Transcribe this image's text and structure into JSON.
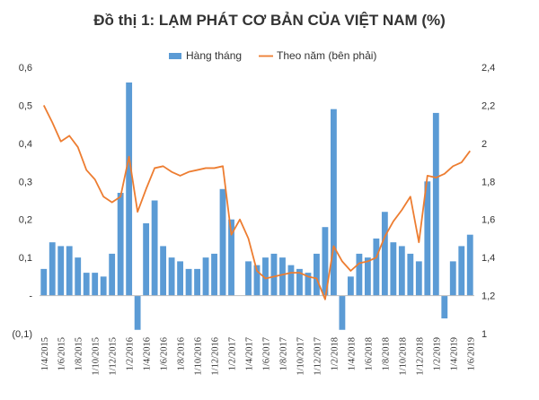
{
  "chart_data": {
    "type": "bar",
    "title": "Đồ thị 1: LẠM PHÁT CƠ BẢN CỦA VIỆT NAM (%)",
    "legend": {
      "placement": "top-right",
      "bar_label": "Hàng tháng",
      "line_label": "Theo năm (bên phải)"
    },
    "colors": {
      "bar": "#5b9bd5",
      "line": "#ed7d31",
      "axis": "#bfbfbf"
    },
    "y_left": {
      "ylim": [
        -0.1,
        0.6
      ],
      "ticks": [
        -0.1,
        0,
        0.1,
        0.2,
        0.3,
        0.4,
        0.5,
        0.6
      ],
      "tick_labels": [
        "(0,1)",
        "-",
        "0,1",
        "0,2",
        "0,3",
        "0,4",
        "0,5",
        "0,6"
      ]
    },
    "y_right": {
      "ylim": [
        1.0,
        2.4
      ],
      "ticks": [
        1.0,
        1.2,
        1.4,
        1.6,
        1.8,
        2.0,
        2.2,
        2.4
      ],
      "tick_labels": [
        "1",
        "1,2",
        "1,4",
        "1,6",
        "1,8",
        "2",
        "2,2",
        "2,4"
      ]
    },
    "x_tick_labels": [
      "1/4/2015",
      "1/6/2015",
      "1/8/2015",
      "1/10/2015",
      "1/12/2015",
      "1/2/2016",
      "1/4/2016",
      "1/6/2016",
      "1/8/2016",
      "1/10/2016",
      "1/12/2016",
      "1/2/2017",
      "1/4/2017",
      "1/6/2017",
      "1/8/2017",
      "1/10/2017",
      "1/12/2017",
      "1/2/2018",
      "1/4/2018",
      "1/6/2018",
      "1/8/2018",
      "1/10/2018",
      "1/12/2018",
      "1/2/2019",
      "1/4/2019",
      "1/6/2019"
    ],
    "series": [
      {
        "name": "Hàng tháng",
        "type": "bar",
        "axis": "left",
        "values": [
          0.07,
          0.14,
          0.13,
          0.13,
          0.1,
          0.06,
          0.06,
          0.05,
          0.11,
          0.27,
          0.56,
          -0.09,
          0.19,
          0.25,
          0.13,
          0.1,
          0.09,
          0.07,
          0.07,
          0.1,
          0.11,
          0.28,
          0.2,
          0.0,
          0.09,
          0.08,
          0.1,
          0.11,
          0.1,
          0.08,
          0.07,
          0.06,
          0.11,
          0.18,
          0.49,
          -0.09,
          0.05,
          0.11,
          0.1,
          0.15,
          0.22,
          0.14,
          0.13,
          0.11,
          0.09,
          0.3,
          0.48,
          -0.06,
          0.09,
          0.13,
          0.16
        ]
      },
      {
        "name": "Theo năm (bên phải)",
        "type": "line",
        "axis": "right",
        "values": [
          2.2,
          2.11,
          2.01,
          2.04,
          1.98,
          1.86,
          1.81,
          1.72,
          1.69,
          1.72,
          1.93,
          1.64,
          1.76,
          1.87,
          1.88,
          1.85,
          1.83,
          1.85,
          1.86,
          1.87,
          1.87,
          1.88,
          1.52,
          1.6,
          1.5,
          1.33,
          1.29,
          1.3,
          1.31,
          1.32,
          1.32,
          1.3,
          1.29,
          1.18,
          1.46,
          1.38,
          1.33,
          1.37,
          1.38,
          1.4,
          1.51,
          1.59,
          1.65,
          1.72,
          1.48,
          1.83,
          1.82,
          1.84,
          1.88,
          1.9,
          1.96
        ]
      }
    ]
  }
}
